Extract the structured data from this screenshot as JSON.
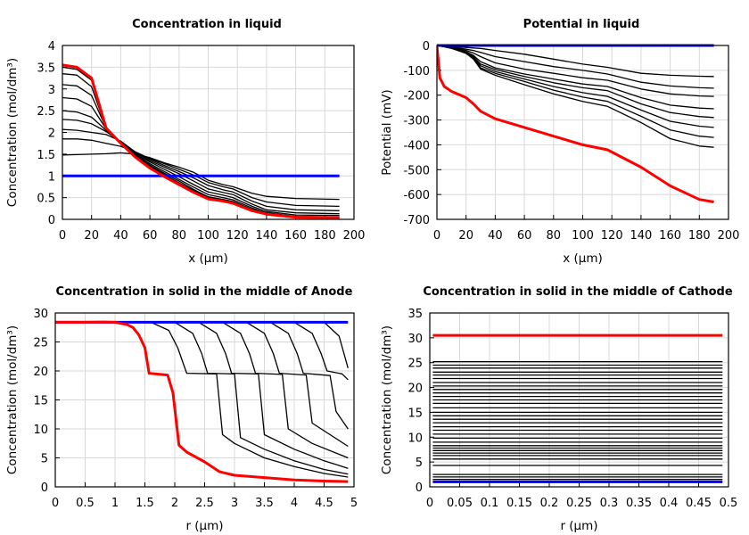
{
  "chart_data": [
    {
      "type": "line",
      "title": "Concentration in liquid",
      "xlabel": "x (µm)",
      "ylabel": "Concentration (mol/dm³)",
      "xlim": [
        0,
        200
      ],
      "ylim": [
        0,
        4
      ],
      "xticks": [
        "0",
        "20",
        "40",
        "60",
        "80",
        "100",
        "120",
        "140",
        "160",
        "180",
        "200"
      ],
      "yticks": [
        "0",
        "0.5",
        "1",
        "1.5",
        "2",
        "2.5",
        "3",
        "3.5",
        "4"
      ],
      "grid": true,
      "x": [
        0,
        10,
        20,
        30,
        40,
        50,
        60,
        70,
        80,
        90,
        100,
        110,
        117,
        130,
        140,
        160,
        190
      ],
      "series": [
        {
          "color": "#000000",
          "y": [
            1.48,
            1.49,
            1.5,
            1.51,
            1.53,
            1.5,
            1.42,
            1.3,
            1.2,
            1.08,
            0.9,
            0.8,
            0.75,
            0.6,
            0.53,
            0.48,
            0.46
          ]
        },
        {
          "color": "#000000",
          "y": [
            1.85,
            1.85,
            1.82,
            1.75,
            1.68,
            1.55,
            1.4,
            1.28,
            1.15,
            1.02,
            0.85,
            0.75,
            0.7,
            0.5,
            0.4,
            0.32,
            0.3
          ]
        },
        {
          "color": "#000000",
          "y": [
            2.07,
            2.05,
            2.0,
            1.95,
            1.8,
            1.55,
            1.38,
            1.24,
            1.1,
            0.95,
            0.78,
            0.68,
            0.63,
            0.42,
            0.3,
            0.22,
            0.2
          ]
        },
        {
          "color": "#000000",
          "y": [
            2.3,
            2.28,
            2.2,
            2.02,
            1.78,
            1.53,
            1.35,
            1.2,
            1.05,
            0.88,
            0.7,
            0.62,
            0.57,
            0.35,
            0.22,
            0.15,
            0.13
          ]
        },
        {
          "color": "#000000",
          "y": [
            2.5,
            2.47,
            2.35,
            2.05,
            1.77,
            1.5,
            1.32,
            1.15,
            0.98,
            0.8,
            0.63,
            0.56,
            0.5,
            0.3,
            0.18,
            0.1,
            0.09
          ]
        },
        {
          "color": "#000000",
          "y": [
            2.8,
            2.77,
            2.6,
            2.08,
            1.76,
            1.48,
            1.28,
            1.1,
            0.92,
            0.74,
            0.57,
            0.5,
            0.45,
            0.26,
            0.15,
            0.07,
            0.06
          ]
        },
        {
          "color": "#000000",
          "y": [
            3.1,
            3.07,
            2.85,
            2.1,
            1.76,
            1.47,
            1.25,
            1.06,
            0.88,
            0.69,
            0.52,
            0.46,
            0.41,
            0.23,
            0.13,
            0.06,
            0.05
          ]
        },
        {
          "color": "#000000",
          "y": [
            3.35,
            3.32,
            3.05,
            2.1,
            1.76,
            1.46,
            1.23,
            1.03,
            0.84,
            0.66,
            0.5,
            0.44,
            0.39,
            0.22,
            0.12,
            0.05,
            0.05
          ]
        },
        {
          "color": "#000000",
          "y": [
            3.5,
            3.45,
            3.2,
            2.1,
            1.76,
            1.45,
            1.21,
            1.01,
            0.82,
            0.64,
            0.48,
            0.43,
            0.38,
            0.21,
            0.12,
            0.05,
            0.04
          ]
        },
        {
          "color": "#0000ff",
          "y": [
            1,
            1,
            1,
            1,
            1,
            1,
            1,
            1,
            1,
            1,
            1,
            1,
            1,
            1,
            1,
            1,
            1
          ]
        },
        {
          "color": "#ff0000",
          "y": [
            3.55,
            3.5,
            3.25,
            2.1,
            1.75,
            1.43,
            1.18,
            0.98,
            0.8,
            0.62,
            0.47,
            0.42,
            0.37,
            0.2,
            0.12,
            0.05,
            0.04
          ]
        }
      ]
    },
    {
      "type": "line",
      "title": "Potential in liquid",
      "xlabel": "x (µm)",
      "ylabel": "Potential (mV)",
      "xlim": [
        0,
        200
      ],
      "ylim": [
        -700,
        0
      ],
      "xticks": [
        "0",
        "20",
        "40",
        "60",
        "80",
        "100",
        "120",
        "140",
        "160",
        "180",
        "200"
      ],
      "yticks": [
        "-700",
        "-600",
        "-500",
        "-400",
        "-300",
        "-200",
        "-100",
        "0"
      ],
      "grid": true,
      "x": [
        0,
        2,
        5,
        10,
        20,
        25,
        30,
        40,
        60,
        80,
        100,
        117,
        140,
        160,
        180,
        190
      ],
      "series": [
        {
          "color": "#000000",
          "y": [
            0,
            -1,
            -2,
            -4,
            -8,
            -10,
            -12,
            -20,
            -35,
            -55,
            -75,
            -88,
            -112,
            -120,
            -124,
            -125
          ]
        },
        {
          "color": "#000000",
          "y": [
            0,
            -1,
            -3,
            -6,
            -15,
            -20,
            -28,
            -45,
            -65,
            -85,
            -100,
            -115,
            -148,
            -163,
            -170,
            -172
          ]
        },
        {
          "color": "#000000",
          "y": [
            0,
            -2,
            -4,
            -8,
            -20,
            -30,
            -45,
            -70,
            -95,
            -112,
            -130,
            -140,
            -175,
            -195,
            -203,
            -205
          ]
        },
        {
          "color": "#000000",
          "y": [
            0,
            -2,
            -5,
            -10,
            -25,
            -40,
            -65,
            -90,
            -115,
            -135,
            -155,
            -165,
            -210,
            -240,
            -252,
            -255
          ]
        },
        {
          "color": "#000000",
          "y": [
            0,
            -2,
            -5,
            -10,
            -26,
            -45,
            -75,
            -97,
            -125,
            -150,
            -170,
            -182,
            -235,
            -270,
            -286,
            -290
          ]
        },
        {
          "color": "#000000",
          "y": [
            0,
            -2,
            -5,
            -11,
            -28,
            -48,
            -82,
            -105,
            -135,
            -165,
            -190,
            -205,
            -260,
            -305,
            -325,
            -330
          ]
        },
        {
          "color": "#000000",
          "y": [
            0,
            -2,
            -5,
            -11,
            -30,
            -52,
            -90,
            -112,
            -145,
            -180,
            -208,
            -225,
            -285,
            -340,
            -365,
            -370
          ]
        },
        {
          "color": "#000000",
          "y": [
            0,
            -2,
            -5,
            -12,
            -32,
            -55,
            -95,
            -120,
            -158,
            -195,
            -225,
            -245,
            -310,
            -375,
            -405,
            -410
          ]
        },
        {
          "color": "#0000ff",
          "y": [
            0,
            0,
            0,
            0,
            0,
            0,
            0,
            0,
            0,
            0,
            0,
            0,
            0,
            0,
            0,
            0
          ]
        },
        {
          "color": "#ff0000",
          "y": [
            0,
            -130,
            -165,
            -185,
            -210,
            -235,
            -265,
            -295,
            -330,
            -365,
            -400,
            -420,
            -490,
            -565,
            -620,
            -630
          ]
        }
      ]
    },
    {
      "type": "line",
      "title": "Concentration in solid in the middle of Anode",
      "xlabel": "r (µm)",
      "ylabel": "Concentration (mol/dm³)",
      "xlim": [
        0,
        5
      ],
      "ylim": [
        0,
        30
      ],
      "xticks": [
        "0",
        "0.5",
        "1",
        "1.5",
        "2",
        "2.5",
        "3",
        "3.5",
        "4",
        "4.5",
        "5"
      ],
      "yticks": [
        "0",
        "5",
        "10",
        "15",
        "20",
        "25",
        "30"
      ],
      "grid": true,
      "series": [
        {
          "color": "#000000",
          "points": [
            [
              0,
              28.4
            ],
            [
              1.6,
              28.4
            ],
            [
              1.9,
              27
            ],
            [
              2.05,
              24
            ],
            [
              2.2,
              19.6
            ],
            [
              2.7,
              19.5
            ],
            [
              2.8,
              9
            ],
            [
              3.0,
              7.5
            ],
            [
              3.5,
              5
            ],
            [
              4.0,
              3.5
            ],
            [
              4.5,
              2.3
            ],
            [
              4.9,
              1.7
            ]
          ]
        },
        {
          "color": "#000000",
          "points": [
            [
              0,
              28.4
            ],
            [
              2.0,
              28.4
            ],
            [
              2.3,
              26.5
            ],
            [
              2.45,
              23
            ],
            [
              2.55,
              19.6
            ],
            [
              3.0,
              19.5
            ],
            [
              3.1,
              8.5
            ],
            [
              3.5,
              6.5
            ],
            [
              4.0,
              4.5
            ],
            [
              4.5,
              3
            ],
            [
              4.9,
              2.2
            ]
          ]
        },
        {
          "color": "#000000",
          "points": [
            [
              0,
              28.4
            ],
            [
              2.4,
              28.4
            ],
            [
              2.7,
              26.5
            ],
            [
              2.85,
              23
            ],
            [
              2.95,
              19.6
            ],
            [
              3.4,
              19.5
            ],
            [
              3.5,
              9
            ],
            [
              4.0,
              6.5
            ],
            [
              4.5,
              4.5
            ],
            [
              4.9,
              3.2
            ]
          ]
        },
        {
          "color": "#000000",
          "points": [
            [
              0,
              28.4
            ],
            [
              2.8,
              28.4
            ],
            [
              3.1,
              26.5
            ],
            [
              3.25,
              23
            ],
            [
              3.35,
              19.6
            ],
            [
              3.8,
              19.4
            ],
            [
              3.9,
              10
            ],
            [
              4.3,
              7.5
            ],
            [
              4.9,
              5
            ]
          ]
        },
        {
          "color": "#000000",
          "points": [
            [
              0,
              28.4
            ],
            [
              3.2,
              28.4
            ],
            [
              3.5,
              26.5
            ],
            [
              3.65,
              23
            ],
            [
              3.75,
              19.6
            ],
            [
              4.2,
              19.3
            ],
            [
              4.3,
              11
            ],
            [
              4.6,
              9
            ],
            [
              4.9,
              7
            ]
          ]
        },
        {
          "color": "#000000",
          "points": [
            [
              0,
              28.4
            ],
            [
              3.6,
              28.4
            ],
            [
              3.9,
              26.5
            ],
            [
              4.05,
              23
            ],
            [
              4.15,
              19.6
            ],
            [
              4.6,
              19.2
            ],
            [
              4.7,
              13
            ],
            [
              4.9,
              10
            ]
          ]
        },
        {
          "color": "#000000",
          "points": [
            [
              0,
              28.4
            ],
            [
              4.0,
              28.4
            ],
            [
              4.3,
              26.5
            ],
            [
              4.45,
              23
            ],
            [
              4.55,
              20
            ],
            [
              4.8,
              19.5
            ],
            [
              4.9,
              18.5
            ]
          ]
        },
        {
          "color": "#000000",
          "points": [
            [
              0,
              28.4
            ],
            [
              4.5,
              28.4
            ],
            [
              4.75,
              26
            ],
            [
              4.9,
              20.5
            ]
          ]
        },
        {
          "color": "#0000ff",
          "points": [
            [
              0,
              28.4
            ],
            [
              4.9,
              28.4
            ]
          ]
        },
        {
          "color": "#ff0000",
          "points": [
            [
              0,
              28.4
            ],
            [
              0.5,
              28.4
            ],
            [
              0.8,
              28.45
            ],
            [
              1,
              28.4
            ],
            [
              1.2,
              28.0
            ],
            [
              1.3,
              27.5
            ],
            [
              1.4,
              26.2
            ],
            [
              1.5,
              24.0
            ],
            [
              1.57,
              19.6
            ],
            [
              1.88,
              19.3
            ],
            [
              1.97,
              16.2
            ],
            [
              2.07,
              7.2
            ],
            [
              2.2,
              6.0
            ],
            [
              2.5,
              4.3
            ],
            [
              2.75,
              2.6
            ],
            [
              3,
              2.0
            ],
            [
              3.5,
              1.6
            ],
            [
              4,
              1.2
            ],
            [
              4.5,
              1.0
            ],
            [
              4.9,
              0.9
            ]
          ]
        }
      ]
    },
    {
      "type": "line",
      "title": "Concentration in solid in the middle of Cathode",
      "xlabel": "r (µm)",
      "ylabel": "Concentration (mol/dm³)",
      "xlim": [
        0,
        0.5
      ],
      "ylim": [
        0,
        35
      ],
      "xticks": [
        "0",
        "0.05",
        "0.1",
        "0.15",
        "0.2",
        "0.25",
        "0.3",
        "0.35",
        "0.4",
        "0.45",
        "0.5"
      ],
      "yticks": [
        "0",
        "5",
        "10",
        "15",
        "20",
        "25",
        "30",
        "35"
      ],
      "grid": true,
      "x_extent": [
        0.005,
        0.49
      ],
      "black_series_levels": [
        1.5,
        2.0,
        2.5,
        4.3,
        5.6,
        6.3,
        6.8,
        7.3,
        7.8,
        8.3,
        9.0,
        9.8,
        10.6,
        11.4,
        12.1,
        12.9,
        13.6,
        14.3,
        15.0,
        15.9,
        16.8,
        17.5,
        18.2,
        18.9,
        19.6,
        20.3,
        21.0,
        21.8,
        22.5,
        23.1,
        23.9,
        24.5,
        25.2
      ],
      "red_level": 30.5,
      "blue_level": 1.0
    }
  ]
}
